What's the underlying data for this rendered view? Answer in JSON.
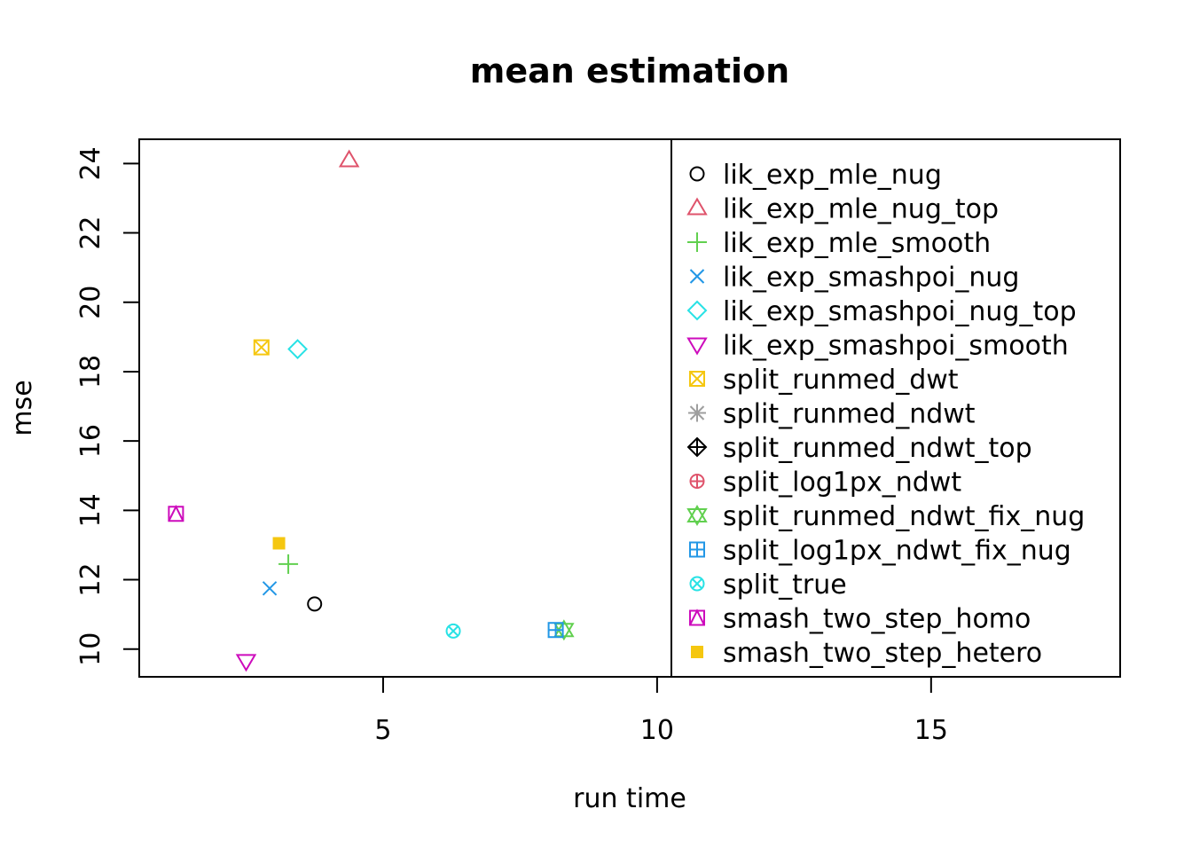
{
  "chart_data": {
    "type": "scatter",
    "title": "mean estimation",
    "xlabel": "run time",
    "ylabel": "mse",
    "xlim": [
      0.55,
      18.45
    ],
    "ylim": [
      9.2,
      24.7
    ],
    "x_ticks": [
      5,
      10,
      15
    ],
    "y_ticks": [
      10,
      12,
      14,
      16,
      18,
      20,
      22,
      24
    ],
    "legend_position": "right (inside plot)",
    "series": [
      {
        "name": "lik_exp_mle_nug",
        "x": 3.75,
        "y": 11.3,
        "color": "#000000",
        "pch": 1
      },
      {
        "name": "lik_exp_mle_nug_top",
        "x": 4.38,
        "y": 24.1,
        "color": "#DF536B",
        "pch": 2
      },
      {
        "name": "lik_exp_mle_smooth",
        "x": 3.27,
        "y": 12.45,
        "color": "#61D04F",
        "pch": 3
      },
      {
        "name": "lik_exp_smashpoi_nug",
        "x": 2.93,
        "y": 11.75,
        "color": "#2297E6",
        "pch": 4
      },
      {
        "name": "lik_exp_smashpoi_nug_top",
        "x": 3.44,
        "y": 18.65,
        "color": "#28E2E5",
        "pch": 5
      },
      {
        "name": "lik_exp_smashpoi_smooth",
        "x": 2.5,
        "y": 9.65,
        "color": "#CD0BBC",
        "pch": 6
      },
      {
        "name": "split_runmed_dwt",
        "x": 2.78,
        "y": 18.7,
        "color": "#F5C710",
        "pch": 7
      },
      {
        "name": "split_runmed_ndwt",
        "x": null,
        "y": null,
        "color": "#9E9E9E",
        "pch": 8
      },
      {
        "name": "split_runmed_ndwt_top",
        "x": null,
        "y": null,
        "color": "#000000",
        "pch": 9
      },
      {
        "name": "split_log1px_ndwt",
        "x": null,
        "y": null,
        "color": "#DF536B",
        "pch": 10
      },
      {
        "name": "split_runmed_ndwt_fix_nug",
        "x": 8.3,
        "y": 10.55,
        "color": "#61D04F",
        "pch": 11
      },
      {
        "name": "split_log1px_ndwt_fix_nug",
        "x": 8.15,
        "y": 10.55,
        "color": "#2297E6",
        "pch": 12
      },
      {
        "name": "split_true",
        "x": 6.28,
        "y": 10.52,
        "color": "#28E2E5",
        "pch": 13
      },
      {
        "name": "smash_two_step_homo",
        "x": 1.22,
        "y": 13.9,
        "color": "#CD0BBC",
        "pch": 14
      },
      {
        "name": "smash_two_step_hetero",
        "x": 3.1,
        "y": 13.05,
        "color": "#F5C710",
        "pch": 15
      }
    ]
  }
}
